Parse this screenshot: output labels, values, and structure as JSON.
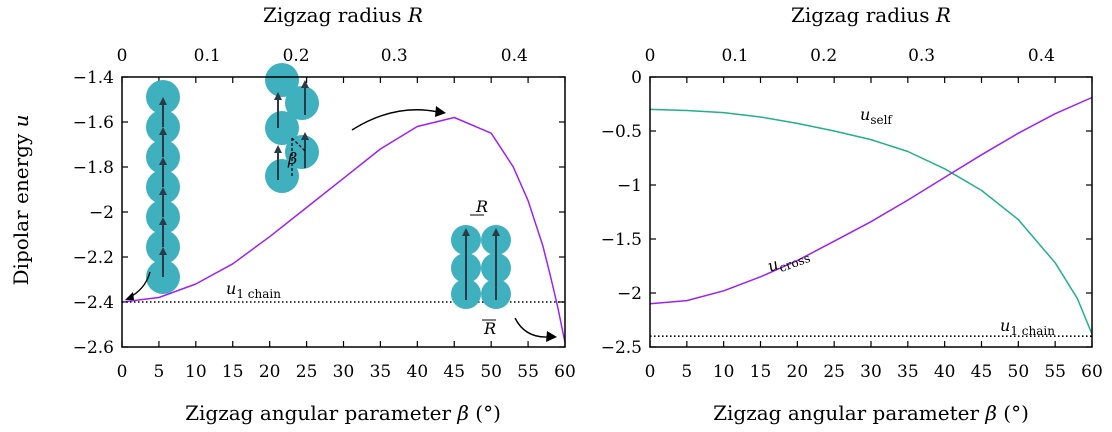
{
  "colors": {
    "purple": "#a020f0",
    "green": "#20b08a",
    "bead": "#3fb0be",
    "arrow": "#2a3a46"
  },
  "chart_data": [
    {
      "type": "line",
      "panel": "left",
      "xlabel_bottom": "Zigzag angular parameter β (°)",
      "xlabel_top": "Zigzag radius R",
      "ylabel": "Dipolar energy u",
      "xlim": [
        0,
        60
      ],
      "ylim": [
        -2.6,
        -1.4
      ],
      "x_ticks": [
        "0",
        "5",
        "10",
        "15",
        "20",
        "25",
        "30",
        "35",
        "40",
        "45",
        "50",
        "55",
        "60"
      ],
      "y_ticks": [
        "-1.4",
        "-1.6",
        "-1.8",
        "-2",
        "-2.2",
        "-2.4",
        "-2.6"
      ],
      "top_ticks": [
        "0",
        "0.1",
        "0.2",
        "0.3",
        "0.4"
      ],
      "top_tick_angles": [
        0,
        11.54,
        23.58,
        36.87,
        53.13
      ],
      "series": [
        {
          "name": "u",
          "color": "#a020f0",
          "x": [
            0,
            5,
            10,
            15,
            20,
            25,
            30,
            35,
            40,
            45,
            50,
            53,
            55,
            57,
            58,
            59,
            60
          ],
          "y": [
            -2.4,
            -2.38,
            -2.32,
            -2.23,
            -2.11,
            -1.98,
            -1.85,
            -1.72,
            -1.62,
            -1.58,
            -1.65,
            -1.8,
            -1.95,
            -2.15,
            -2.28,
            -2.42,
            -2.58
          ]
        },
        {
          "name": "u_1 chain",
          "style": "dotted",
          "color": "#000000",
          "x": [
            0,
            60
          ],
          "y": [
            -2.4,
            -2.4
          ]
        }
      ],
      "annotations": [
        {
          "text": "u",
          "sub": "1 chain"
        },
        {
          "text": "β"
        },
        {
          "text": "R"
        },
        {
          "text": "R"
        }
      ]
    },
    {
      "type": "line",
      "panel": "right",
      "xlabel_bottom": "Zigzag angular parameter β (°)",
      "xlabel_top": "Zigzag radius R",
      "xlim": [
        0,
        60
      ],
      "ylim": [
        -2.5,
        0
      ],
      "x_ticks": [
        "0",
        "5",
        "10",
        "15",
        "20",
        "25",
        "30",
        "35",
        "40",
        "45",
        "50",
        "55",
        "60"
      ],
      "y_ticks": [
        "0",
        "-0.5",
        "-1",
        "-1.5",
        "-2",
        "-2.5"
      ],
      "top_ticks": [
        "0",
        "0.1",
        "0.2",
        "0.3",
        "0.4"
      ],
      "top_tick_angles": [
        0,
        11.54,
        23.58,
        36.87,
        53.13
      ],
      "series": [
        {
          "name": "u_self",
          "color": "#20b08a",
          "x": [
            0,
            5,
            10,
            15,
            20,
            25,
            30,
            35,
            40,
            45,
            50,
            55,
            58,
            60
          ],
          "y": [
            -0.3,
            -0.31,
            -0.33,
            -0.37,
            -0.43,
            -0.5,
            -0.58,
            -0.69,
            -0.85,
            -1.05,
            -1.32,
            -1.72,
            -2.05,
            -2.38
          ]
        },
        {
          "name": "u_cross",
          "color": "#a020f0",
          "x": [
            0,
            5,
            10,
            15,
            20,
            25,
            30,
            35,
            40,
            45,
            50,
            55,
            60
          ],
          "y": [
            -2.1,
            -2.07,
            -1.98,
            -1.85,
            -1.7,
            -1.52,
            -1.34,
            -1.14,
            -0.93,
            -0.72,
            -0.52,
            -0.34,
            -0.19
          ]
        },
        {
          "name": "u_1 chain",
          "style": "dotted",
          "color": "#000000",
          "x": [
            0,
            60
          ],
          "y": [
            -2.4,
            -2.4
          ]
        }
      ],
      "annotations": [
        {
          "text": "u",
          "sub": "self"
        },
        {
          "text": "u",
          "sub": "cross"
        },
        {
          "text": "u",
          "sub": "1 chain"
        }
      ]
    }
  ]
}
